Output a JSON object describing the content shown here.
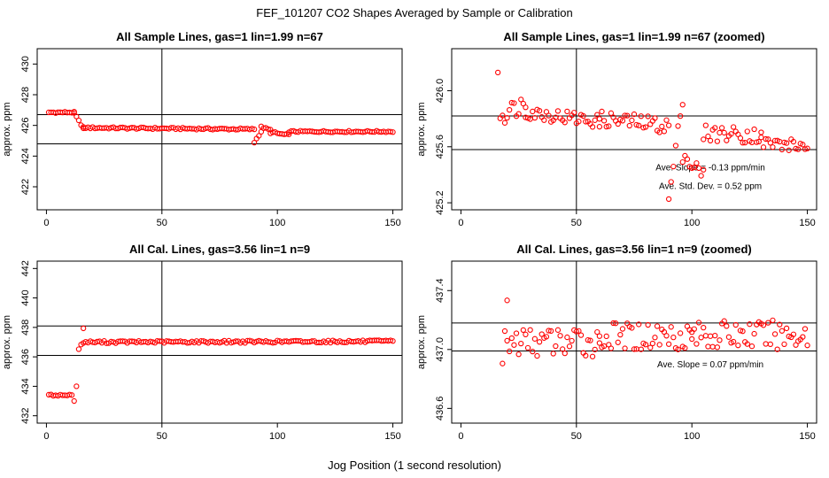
{
  "suptitle": "FEF_101207  CO2 Shapes Averaged by Sample or Calibration",
  "global_xlabel": "Jog Position (1 second resolution)",
  "colors": {
    "points": "#ff0000",
    "axes": "#000000",
    "background": "#ffffff"
  },
  "chart_data": [
    {
      "id": "p1",
      "type": "scatter",
      "title": "All Sample Lines, gas=1 lin=1.99 n=67",
      "ylabel": "approx. ppm",
      "xlim": [
        -4,
        154
      ],
      "ylim": [
        420.5,
        431
      ],
      "xticks": [
        0,
        50,
        100,
        150
      ],
      "yticks": [
        422,
        424,
        426,
        428,
        430
      ],
      "hlines": [
        426.7,
        424.8
      ],
      "vline": 50,
      "annotations": [],
      "segments": [
        {
          "x0": 1,
          "x1": 12,
          "y0": 426.85,
          "y1": 426.85,
          "amp": 0.05
        },
        {
          "x0": 12,
          "x1": 16,
          "y0": 426.8,
          "y1": 425.8,
          "amp": 0.04
        },
        {
          "x0": 16,
          "x1": 90,
          "y0": 425.85,
          "y1": 425.75,
          "amp": 0.06
        },
        {
          "x0": 90,
          "x1": 93,
          "y0": 424.9,
          "y1": 425.6,
          "amp": 0.05
        },
        {
          "x0": 93,
          "x1": 97,
          "y0": 425.9,
          "y1": 425.7,
          "amp": 0.05
        },
        {
          "x0": 97,
          "x1": 105,
          "y0": 425.55,
          "y1": 425.35,
          "amp": 0.08
        },
        {
          "x0": 105,
          "x1": 150,
          "y0": 425.6,
          "y1": 425.6,
          "amp": 0.05
        }
      ]
    },
    {
      "id": "p2",
      "type": "scatter",
      "title": "All Sample Lines, gas=1 lin=1.99 n=67 (zoomed)",
      "ylabel": "approx. ppm",
      "xlim": [
        -4,
        154
      ],
      "ylim": [
        425.15,
        426.3
      ],
      "xticks": [
        0,
        50,
        100,
        150
      ],
      "yticks": [
        425.2,
        425.6,
        426.0
      ],
      "hlines": [
        425.82,
        425.58
      ],
      "vline": 50,
      "annotations": [
        {
          "text": "Ave. Slope =  -0.13  ppm/min",
          "x": 108,
          "y": 425.43
        },
        {
          "text": "Ave. Std. Dev. =  0.52  ppm",
          "x": 108,
          "y": 425.3
        }
      ],
      "segments": [
        {
          "x0": 16,
          "x1": 16,
          "y0": 426.13,
          "y1": 426.13,
          "amp": 0
        },
        {
          "x0": 17,
          "x1": 28,
          "y0": 425.82,
          "y1": 425.92,
          "amp": 0.07
        },
        {
          "x0": 28,
          "x1": 60,
          "y0": 425.85,
          "y1": 425.78,
          "amp": 0.05
        },
        {
          "x0": 60,
          "x1": 90,
          "y0": 425.8,
          "y1": 425.75,
          "amp": 0.06
        },
        {
          "x0": 90,
          "x1": 96,
          "y0": 425.22,
          "y1": 425.95,
          "amp": 0.05
        },
        {
          "x0": 96,
          "x1": 105,
          "y0": 425.55,
          "y1": 425.38,
          "amp": 0.07
        },
        {
          "x0": 105,
          "x1": 130,
          "y0": 425.7,
          "y1": 425.68,
          "amp": 0.06
        },
        {
          "x0": 130,
          "x1": 150,
          "y0": 425.63,
          "y1": 425.6,
          "amp": 0.05
        }
      ]
    },
    {
      "id": "p3",
      "type": "scatter",
      "title": "All Cal. Lines, gas=3.56 lin=1 n=9",
      "ylabel": "approx. ppm",
      "xlim": [
        -4,
        154
      ],
      "ylim": [
        431.5,
        442.5
      ],
      "xticks": [
        0,
        50,
        100,
        150
      ],
      "yticks": [
        432,
        434,
        436,
        438,
        440,
        442
      ],
      "hlines": [
        438.1,
        436.1
      ],
      "vline": 50,
      "annotations": [],
      "segments": [
        {
          "x0": 1,
          "x1": 11,
          "y0": 433.4,
          "y1": 433.4,
          "amp": 0.05
        },
        {
          "x0": 12,
          "x1": 13,
          "y0": 433.0,
          "y1": 434.0,
          "amp": 0
        },
        {
          "x0": 14,
          "x1": 16,
          "y0": 436.4,
          "y1": 437.7,
          "amp": 0.3
        },
        {
          "x0": 16,
          "x1": 150,
          "y0": 437.0,
          "y1": 437.05,
          "amp": 0.08
        }
      ]
    },
    {
      "id": "p4",
      "type": "scatter",
      "title": "All Cal. Lines, gas=3.56 lin=1 n=9 (zoomed)",
      "ylabel": "approx. ppm",
      "xlim": [
        -4,
        154
      ],
      "ylim": [
        436.5,
        437.6
      ],
      "xticks": [
        0,
        50,
        100,
        150
      ],
      "yticks": [
        436.6,
        437.0,
        437.4
      ],
      "hlines": [
        437.18,
        436.99
      ],
      "vline": 50,
      "annotations": [
        {
          "text": "Ave. Slope =  0.07  ppm/min",
          "x": 108,
          "y": 436.88
        }
      ],
      "segments": [
        {
          "x0": 18,
          "x1": 20,
          "y0": 436.9,
          "y1": 437.32,
          "amp": 0.05
        },
        {
          "x0": 20,
          "x1": 60,
          "y0": 437.05,
          "y1": 437.05,
          "amp": 0.1
        },
        {
          "x0": 60,
          "x1": 100,
          "y0": 437.08,
          "y1": 437.1,
          "amp": 0.1
        },
        {
          "x0": 100,
          "x1": 150,
          "y0": 437.1,
          "y1": 437.1,
          "amp": 0.1
        }
      ]
    }
  ]
}
